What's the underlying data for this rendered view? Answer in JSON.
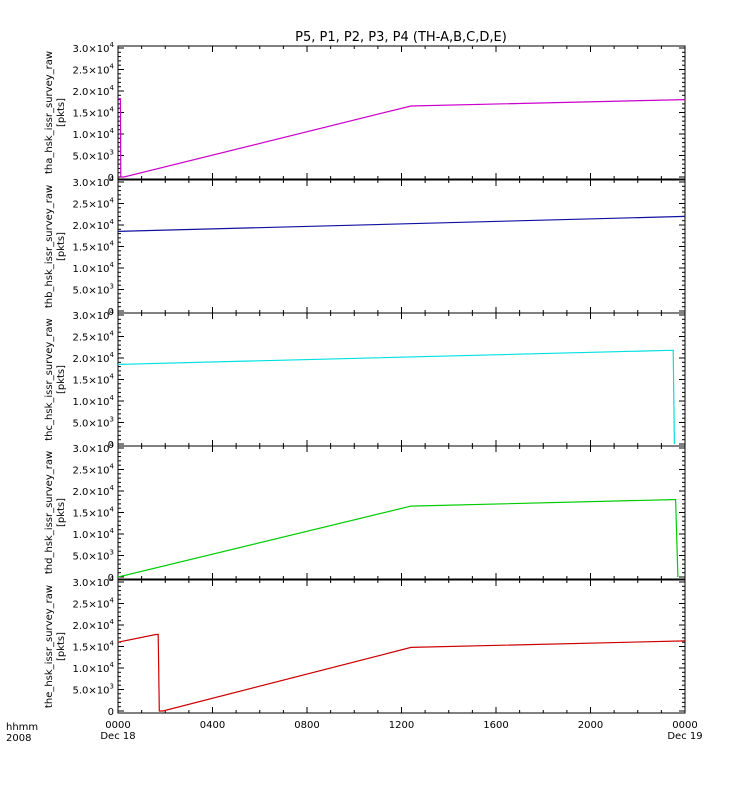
{
  "chart_data": {
    "type": "line",
    "title": "P5, P1, P2, P3, P4 (TH-A,B,C,D,E)",
    "x_axis": {
      "tick_labels": [
        "0000",
        "0400",
        "0800",
        "1200",
        "1600",
        "2000",
        "0000"
      ],
      "tick_hours": [
        0,
        4,
        8,
        12,
        16,
        20,
        24
      ],
      "date_labels": [
        {
          "hour": 0,
          "text": "Dec 18"
        },
        {
          "hour": 24,
          "text": "Dec 19"
        }
      ],
      "corner_label_1": "hhmm",
      "corner_label_2": "2008",
      "xlim_hours": [
        0,
        24
      ]
    },
    "y_tick_values": [
      0,
      5000,
      10000,
      15000,
      20000,
      25000,
      30000
    ],
    "ylim": [
      0,
      30000
    ],
    "panels": [
      {
        "ylabel": "tha_hsk_issr_survey_raw",
        "unit": "[pkts]",
        "color": "#cc00cc",
        "points": [
          [
            0,
            18200
          ],
          [
            0.1,
            18200
          ],
          [
            0.12,
            0
          ],
          [
            0.25,
            0
          ],
          [
            12.4,
            16500
          ],
          [
            24,
            18000
          ]
        ]
      },
      {
        "ylabel": "thb_hsk_issr_survey_raw",
        "unit": "[pkts]",
        "color": "#1010a0",
        "points": [
          [
            0,
            18500
          ],
          [
            24,
            22000
          ]
        ]
      },
      {
        "ylabel": "thc_hsk_issr_survey_raw",
        "unit": "[pkts]",
        "color": "#00e0e0",
        "points": [
          [
            0,
            18500
          ],
          [
            23.4,
            21800
          ],
          [
            23.5,
            21800
          ],
          [
            23.55,
            0
          ]
        ]
      },
      {
        "ylabel": "thd_hsk_issr_survey_raw",
        "unit": "[pkts]",
        "color": "#00cc00",
        "points": [
          [
            0,
            0
          ],
          [
            12.4,
            16500
          ],
          [
            23.5,
            18000
          ],
          [
            23.6,
            18000
          ],
          [
            23.7,
            0
          ]
        ]
      },
      {
        "ylabel": "the_hsk_issr_survey_raw",
        "unit": "[pkts]",
        "color": "#cc0000",
        "points": [
          [
            0,
            16000
          ],
          [
            1.6,
            17800
          ],
          [
            1.7,
            17800
          ],
          [
            1.75,
            0
          ],
          [
            1.9,
            0
          ],
          [
            12.4,
            14800
          ],
          [
            24,
            16300
          ]
        ]
      }
    ]
  }
}
